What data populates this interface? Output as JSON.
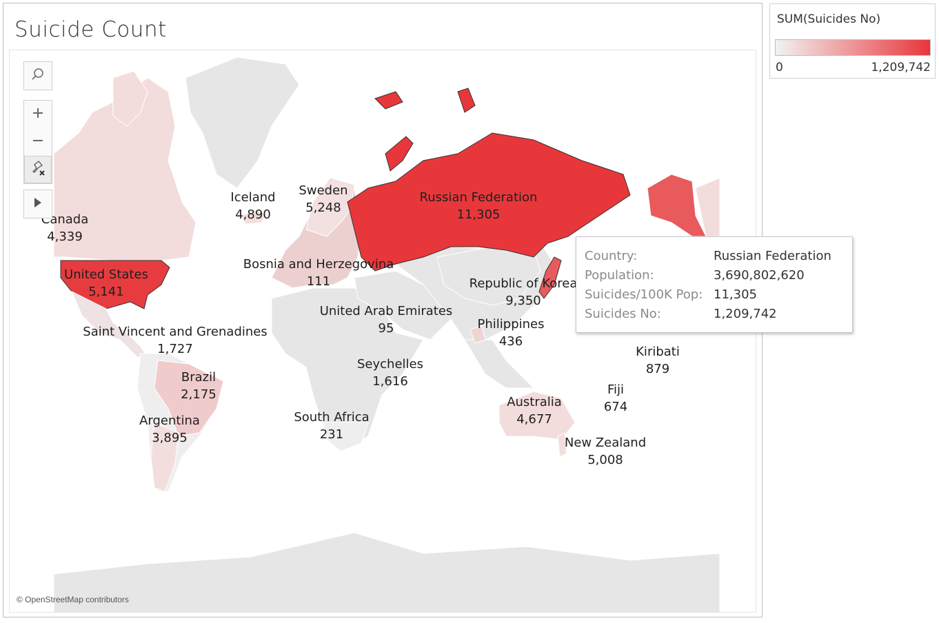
{
  "title": "Suicide Count",
  "attribution": "© OpenStreetMap contributors",
  "legend": {
    "title": "SUM(Suicides No)",
    "min_label": "0",
    "max_label": "1,209,742",
    "min_value": 0,
    "max_value": 1209742,
    "color_low": "#f2f2f2",
    "color_high": "#e8373b"
  },
  "map_tools": {
    "search_icon": "search-icon",
    "zoom_in_icon": "plus-icon",
    "zoom_out_icon": "minus-icon",
    "unpin_icon": "pin-clear-icon",
    "expand_icon": "play-arrow-icon"
  },
  "labels": [
    {
      "name": "Canada",
      "value": "4,339"
    },
    {
      "name": "United States",
      "value": "5,141"
    },
    {
      "name": "Iceland",
      "value": "4,890"
    },
    {
      "name": "Sweden",
      "value": "5,248"
    },
    {
      "name": "Russian Federation",
      "value": "11,305"
    },
    {
      "name": "Bosnia and Herzegovina",
      "value": "111"
    },
    {
      "name": "Republic of Korea",
      "value": "9,350"
    },
    {
      "name": "United Arab Emirates",
      "value": "95"
    },
    {
      "name": "Philippines",
      "value": "436"
    },
    {
      "name": "Saint Vincent and Grenadines",
      "value": "1,727"
    },
    {
      "name": "Brazil",
      "value": "2,175"
    },
    {
      "name": "Seychelles",
      "value": "1,616"
    },
    {
      "name": "Kiribati",
      "value": "879"
    },
    {
      "name": "Argentina",
      "value": "3,895"
    },
    {
      "name": "South Africa",
      "value": "231"
    },
    {
      "name": "Fiji",
      "value": "674"
    },
    {
      "name": "Australia",
      "value": "4,677"
    },
    {
      "name": "New Zealand",
      "value": "5,008"
    }
  ],
  "tooltip": {
    "rows": [
      {
        "key": "Country:",
        "value": "Russian Federation"
      },
      {
        "key": "Population:",
        "value": "3,690,802,620"
      },
      {
        "key": "Suicides/100K Pop:",
        "value": "11,305"
      },
      {
        "key": "Suicides No:",
        "value": "1,209,742"
      }
    ]
  },
  "colors": {
    "land_default": "#e6e6e6",
    "russia": "#e8373b",
    "usa": "#e63c3f",
    "alaska_region": "#e85a5c",
    "light_pink": "#f3dcdc",
    "mid_pink": "#efc7c8",
    "border": "#ffffff"
  }
}
